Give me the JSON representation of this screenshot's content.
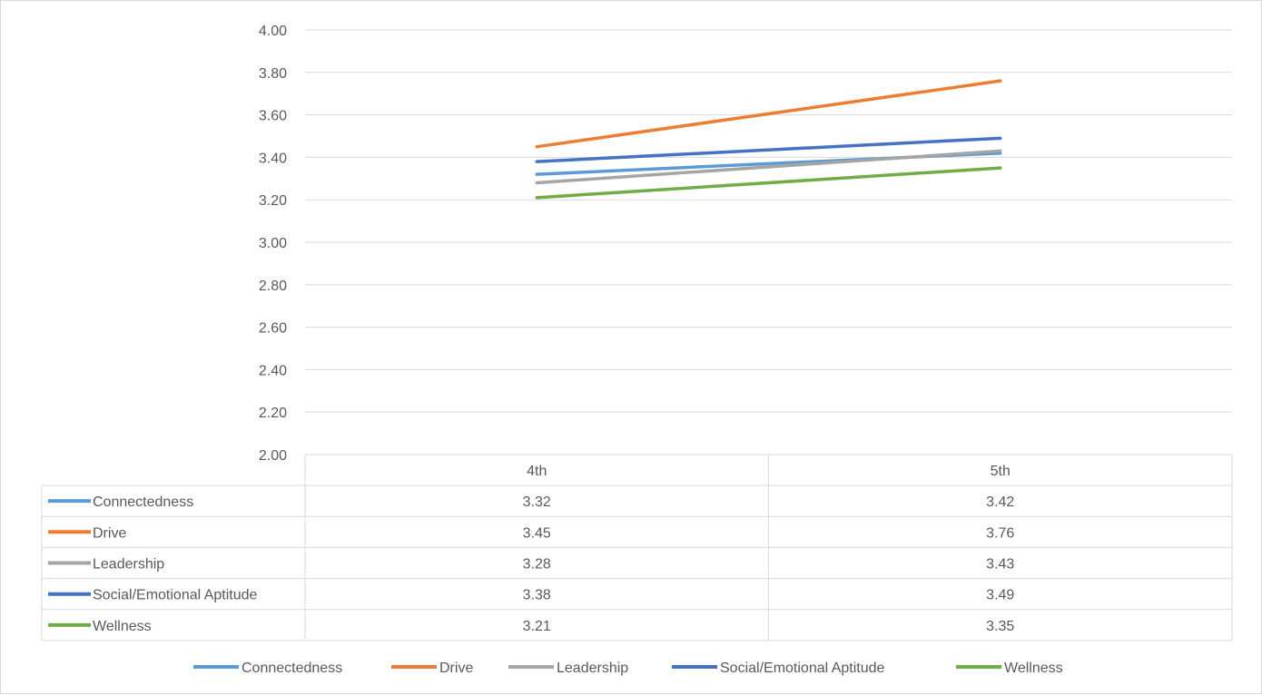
{
  "chart_data": {
    "type": "line",
    "categories": [
      "4th",
      "5th"
    ],
    "series": [
      {
        "name": "Connectedness",
        "values": [
          3.32,
          3.42
        ],
        "color": "#5B9BD5"
      },
      {
        "name": "Drive",
        "values": [
          3.45,
          3.76
        ],
        "color": "#ED7D31"
      },
      {
        "name": "Leadership",
        "values": [
          3.28,
          3.43
        ],
        "color": "#A5A5A5"
      },
      {
        "name": "Social/Emotional Aptitude",
        "values": [
          3.38,
          3.49
        ],
        "color": "#4472C4"
      },
      {
        "name": "Wellness",
        "values": [
          3.21,
          3.35
        ],
        "color": "#70AD47"
      }
    ],
    "ylim": [
      2.0,
      4.0
    ],
    "yticks": [
      "2.00",
      "2.20",
      "2.40",
      "2.60",
      "2.80",
      "3.00",
      "3.20",
      "3.40",
      "3.60",
      "3.80",
      "4.00"
    ],
    "grid": true,
    "legend": "bottom",
    "data_table": true,
    "title": "",
    "xlabel": "",
    "ylabel": ""
  }
}
